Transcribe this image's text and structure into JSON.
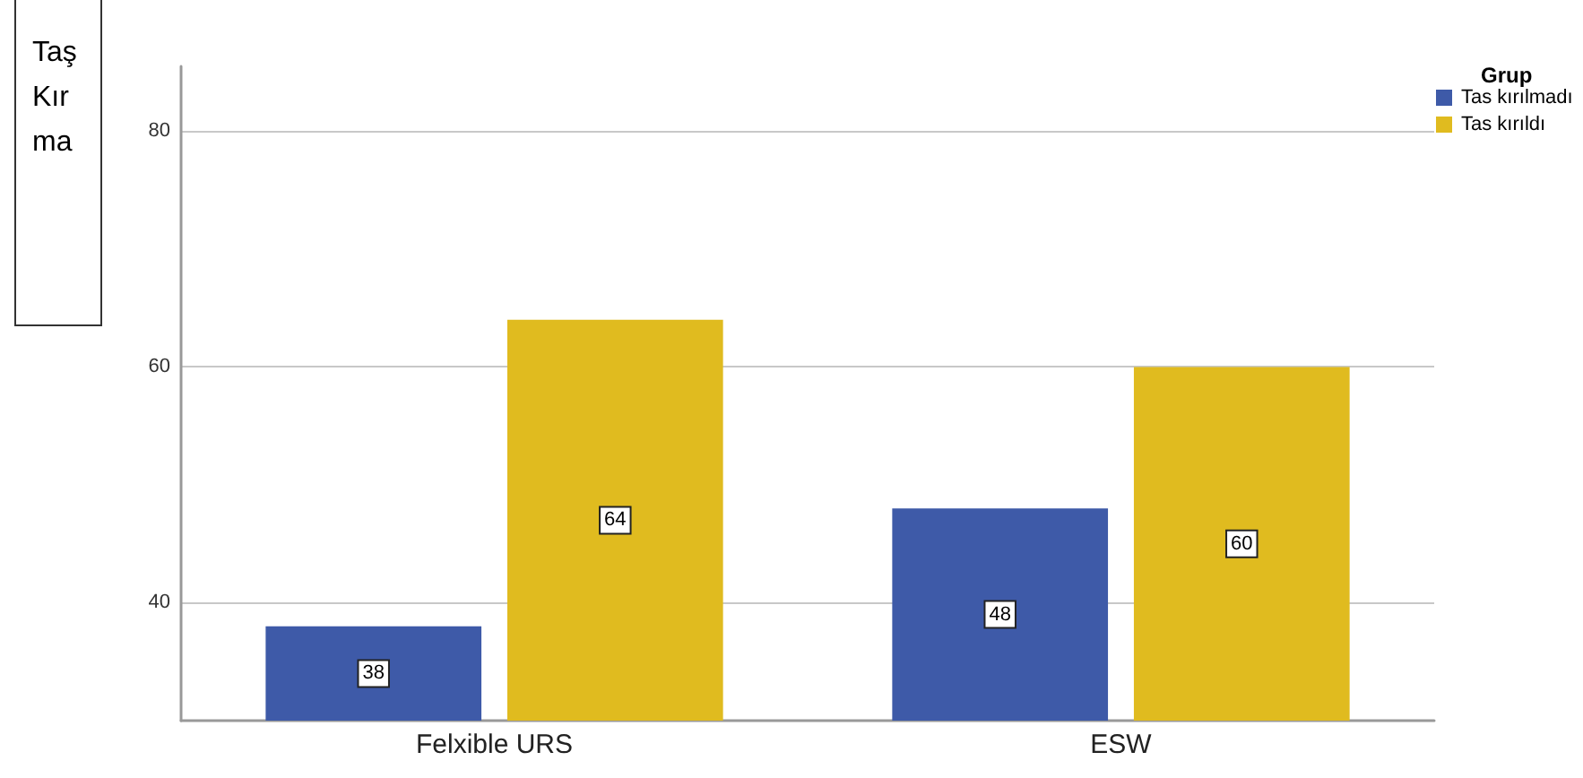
{
  "chart_data": {
    "type": "bar",
    "ylabel": "Taş Kırma",
    "legend_title": "Grup",
    "categories": [
      "Felxible URS",
      "ESW"
    ],
    "series": [
      {
        "name": "Tas kırılmadı",
        "color": "#3e5aa8",
        "values": [
          38,
          48
        ]
      },
      {
        "name": "Tas kırıldı",
        "color": "#e0bb1f",
        "values": [
          64,
          60
        ]
      }
    ],
    "ylim": [
      30,
      85.5
    ],
    "yticks": [
      40,
      60,
      80
    ],
    "grid": "y",
    "legend": "top right",
    "data_labels": true
  }
}
